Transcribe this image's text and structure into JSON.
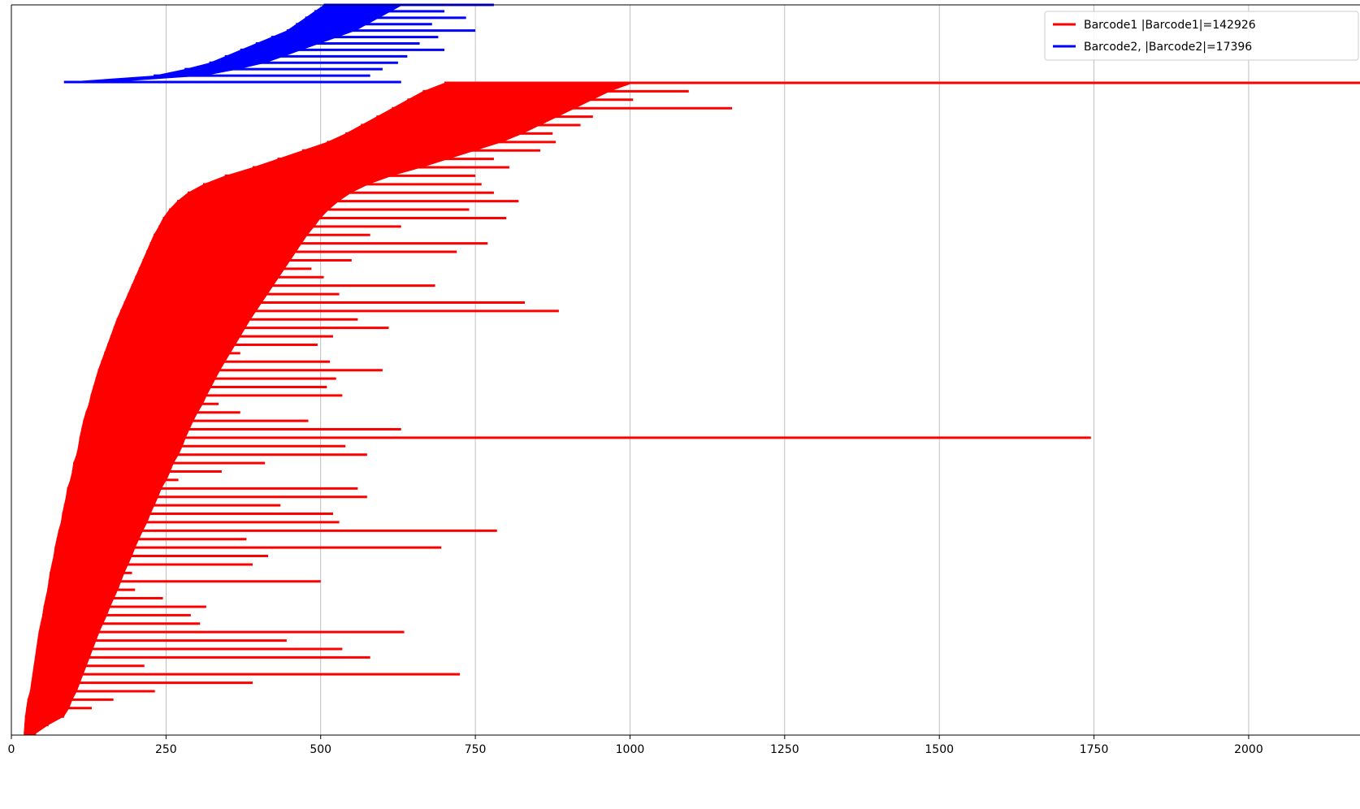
{
  "chart_data": {
    "type": "bar",
    "orientation": "horizontal",
    "title": "",
    "xlabel": "",
    "ylabel": "",
    "xlim": [
      0,
      2180
    ],
    "x_ticks": [
      0,
      250,
      500,
      750,
      1000,
      1250,
      1500,
      1750,
      2000
    ],
    "x_tick_labels": [
      "0",
      "250",
      "500",
      "750",
      "1000",
      "1250",
      "1500",
      "1750",
      "2000"
    ],
    "grid": "x",
    "legend_position": "top-right",
    "series": [
      {
        "name": "Barcode1 |Barcode1|=142926",
        "color": "#ff0000",
        "segments": [
          {
            "start": 20,
            "end": 40
          },
          {
            "start": 21,
            "end": 60
          },
          {
            "start": 22,
            "end": 85
          },
          {
            "start": 24,
            "end": 130
          },
          {
            "start": 26,
            "end": 165
          },
          {
            "start": 30,
            "end": 232
          },
          {
            "start": 32,
            "end": 390
          },
          {
            "start": 34,
            "end": 725
          },
          {
            "start": 36,
            "end": 215
          },
          {
            "start": 38,
            "end": 580
          },
          {
            "start": 40,
            "end": 535
          },
          {
            "start": 42,
            "end": 445
          },
          {
            "start": 44,
            "end": 635
          },
          {
            "start": 47,
            "end": 305
          },
          {
            "start": 50,
            "end": 290
          },
          {
            "start": 52,
            "end": 315
          },
          {
            "start": 55,
            "end": 245
          },
          {
            "start": 58,
            "end": 200
          },
          {
            "start": 60,
            "end": 500
          },
          {
            "start": 62,
            "end": 195
          },
          {
            "start": 65,
            "end": 390
          },
          {
            "start": 68,
            "end": 415
          },
          {
            "start": 70,
            "end": 695
          },
          {
            "start": 73,
            "end": 380
          },
          {
            "start": 76,
            "end": 785
          },
          {
            "start": 80,
            "end": 530
          },
          {
            "start": 82,
            "end": 520
          },
          {
            "start": 85,
            "end": 435
          },
          {
            "start": 88,
            "end": 575
          },
          {
            "start": 90,
            "end": 560
          },
          {
            "start": 95,
            "end": 270
          },
          {
            "start": 98,
            "end": 340
          },
          {
            "start": 100,
            "end": 410
          },
          {
            "start": 105,
            "end": 575
          },
          {
            "start": 108,
            "end": 540
          },
          {
            "start": 110,
            "end": 1745
          },
          {
            "start": 113,
            "end": 630
          },
          {
            "start": 116,
            "end": 480
          },
          {
            "start": 120,
            "end": 370
          },
          {
            "start": 125,
            "end": 335
          },
          {
            "start": 128,
            "end": 535
          },
          {
            "start": 132,
            "end": 510
          },
          {
            "start": 136,
            "end": 525
          },
          {
            "start": 140,
            "end": 600
          },
          {
            "start": 145,
            "end": 515
          },
          {
            "start": 150,
            "end": 370
          },
          {
            "start": 155,
            "end": 495
          },
          {
            "start": 160,
            "end": 520
          },
          {
            "start": 165,
            "end": 610
          },
          {
            "start": 170,
            "end": 560
          },
          {
            "start": 176,
            "end": 885
          },
          {
            "start": 182,
            "end": 830
          },
          {
            "start": 188,
            "end": 530
          },
          {
            "start": 194,
            "end": 685
          },
          {
            "start": 200,
            "end": 505
          },
          {
            "start": 206,
            "end": 485
          },
          {
            "start": 212,
            "end": 550
          },
          {
            "start": 218,
            "end": 720
          },
          {
            "start": 224,
            "end": 770
          },
          {
            "start": 230,
            "end": 580
          },
          {
            "start": 238,
            "end": 630
          },
          {
            "start": 245,
            "end": 800
          },
          {
            "start": 255,
            "end": 740
          },
          {
            "start": 268,
            "end": 820
          },
          {
            "start": 285,
            "end": 780
          },
          {
            "start": 310,
            "end": 760
          },
          {
            "start": 345,
            "end": 750
          },
          {
            "start": 390,
            "end": 805
          },
          {
            "start": 430,
            "end": 780
          },
          {
            "start": 470,
            "end": 855
          },
          {
            "start": 510,
            "end": 880
          },
          {
            "start": 540,
            "end": 875
          },
          {
            "start": 565,
            "end": 920
          },
          {
            "start": 590,
            "end": 940
          },
          {
            "start": 615,
            "end": 1165
          },
          {
            "start": 640,
            "end": 1005
          },
          {
            "start": 665,
            "end": 1095
          },
          {
            "start": 700,
            "end": 2180
          }
        ]
      },
      {
        "name": "Barcode2, |Barcode2|=17396",
        "color": "#0000ff",
        "segments": [
          {
            "start": 85,
            "end": 630
          },
          {
            "start": 230,
            "end": 580
          },
          {
            "start": 280,
            "end": 600
          },
          {
            "start": 320,
            "end": 625
          },
          {
            "start": 345,
            "end": 640
          },
          {
            "start": 370,
            "end": 700
          },
          {
            "start": 395,
            "end": 660
          },
          {
            "start": 420,
            "end": 690
          },
          {
            "start": 445,
            "end": 750
          },
          {
            "start": 460,
            "end": 680
          },
          {
            "start": 475,
            "end": 735
          },
          {
            "start": 490,
            "end": 700
          },
          {
            "start": 505,
            "end": 780
          }
        ]
      }
    ]
  }
}
